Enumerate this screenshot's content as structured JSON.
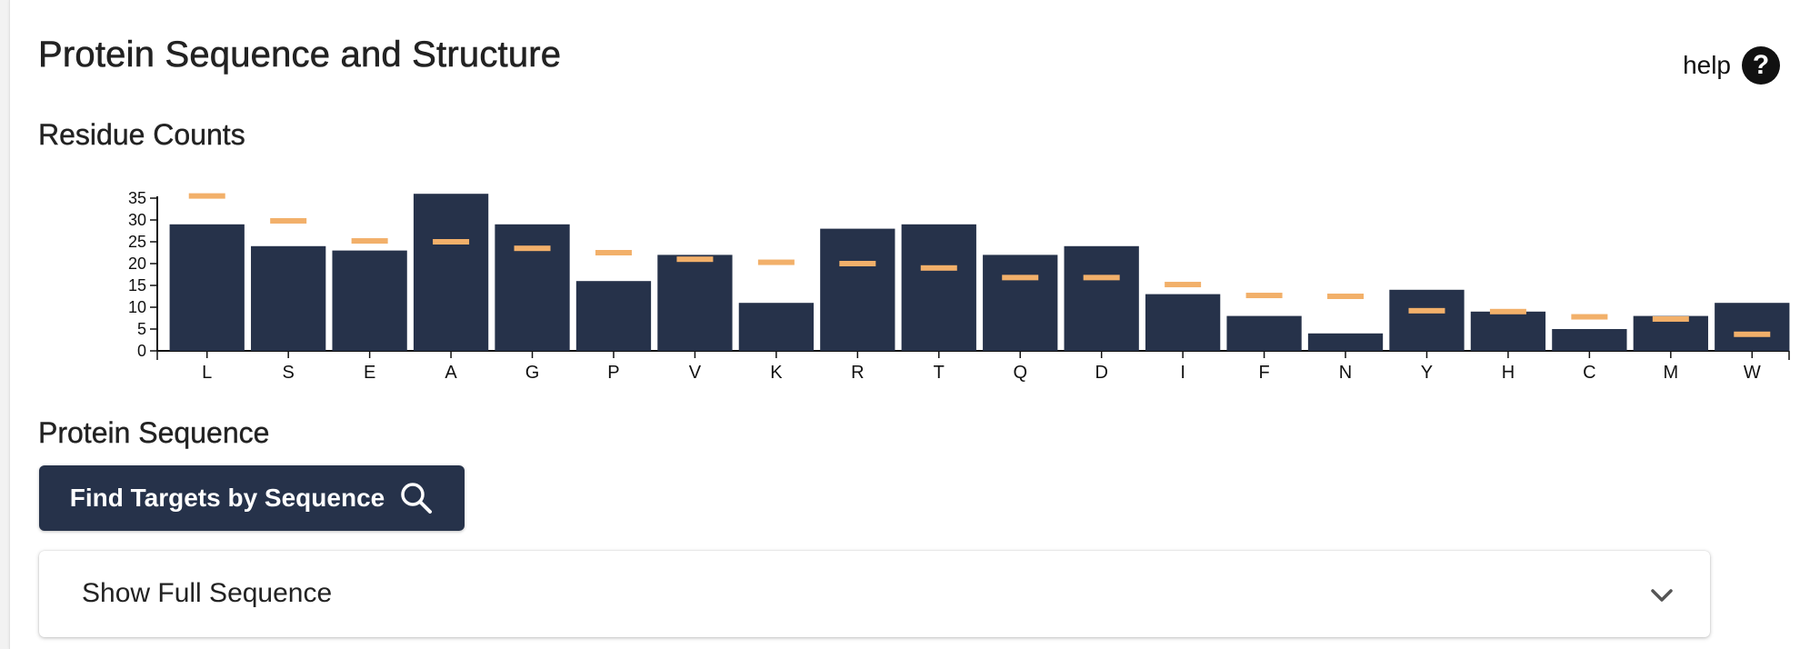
{
  "header": {
    "title": "Protein Sequence and Structure",
    "help_label": "help",
    "help_icon": "question-circle-icon"
  },
  "sections": {
    "residue_counts": "Residue Counts",
    "protein_sequence": "Protein Sequence"
  },
  "find_button": {
    "label": "Find Targets by Sequence",
    "icon": "search-icon"
  },
  "expander": {
    "label": "Show Full Sequence",
    "icon": "chevron-down-icon"
  },
  "colors": {
    "bar": "#26324a",
    "marker": "#f2b06a",
    "button": "#26324a"
  },
  "chart_data": {
    "type": "bar",
    "title": "Residue Counts",
    "xlabel": "",
    "ylabel": "",
    "ylim": [
      0,
      35
    ],
    "yticks": [
      0,
      5,
      10,
      15,
      20,
      25,
      30,
      35
    ],
    "categories": [
      "L",
      "S",
      "E",
      "A",
      "G",
      "P",
      "V",
      "K",
      "R",
      "T",
      "Q",
      "D",
      "I",
      "F",
      "N",
      "Y",
      "H",
      "C",
      "M",
      "W"
    ],
    "series": [
      {
        "kind": "bar",
        "values": [
          29,
          24,
          23,
          36,
          29,
          16,
          22,
          11,
          28,
          29,
          22,
          24,
          13,
          8,
          4,
          14,
          9,
          5,
          8,
          11
        ]
      },
      {
        "kind": "marker",
        "values": [
          35.5,
          29.8,
          25.2,
          25,
          23.5,
          22.5,
          21,
          20.3,
          20,
          19,
          16.8,
          16.8,
          15.2,
          12.7,
          12.5,
          9.2,
          9,
          7.8,
          7.3,
          3.8
        ]
      }
    ]
  }
}
